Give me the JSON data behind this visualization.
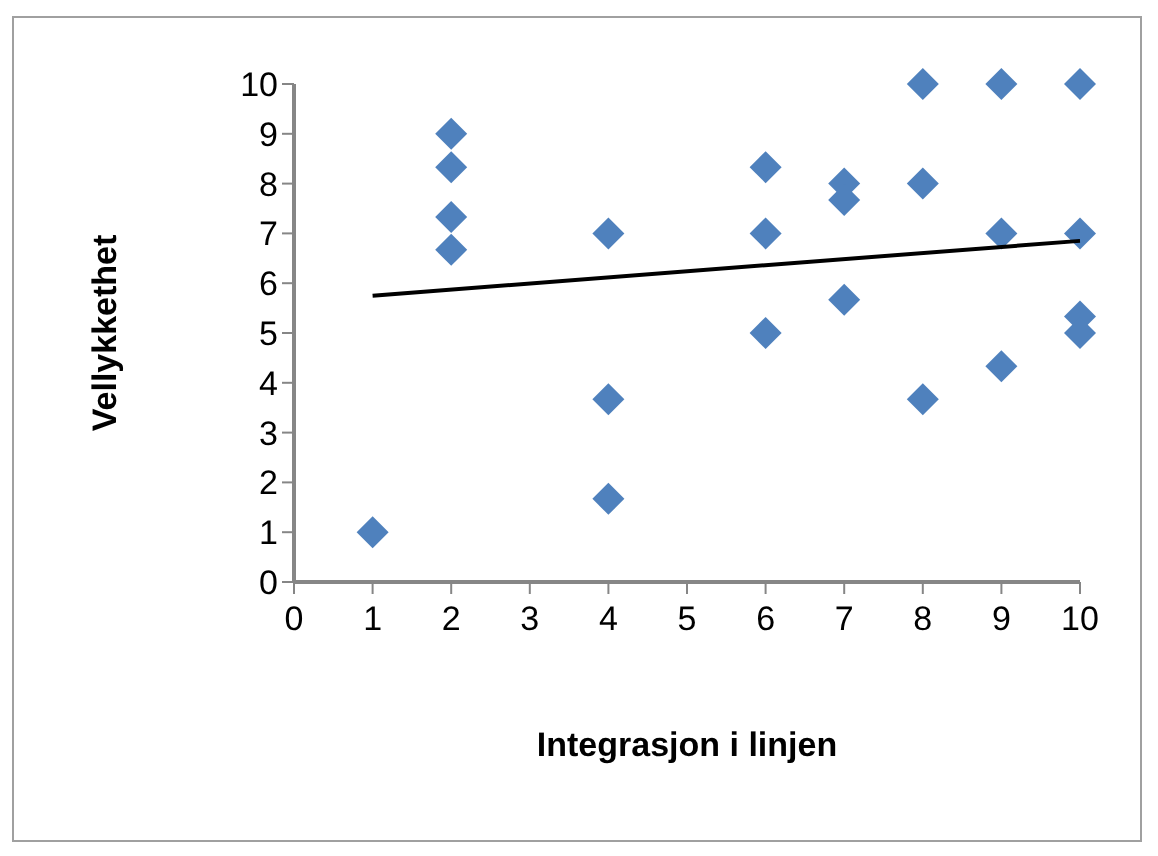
{
  "chart_data": {
    "type": "scatter",
    "xlabel": "Integrasjon i linjen",
    "ylabel": "Vellykkethet",
    "xlim": [
      0,
      10
    ],
    "xticks": [
      0,
      1,
      2,
      3,
      4,
      5,
      6,
      7,
      8,
      9,
      10
    ],
    "ylim": [
      0,
      10
    ],
    "yticks": [
      0,
      1,
      2,
      3,
      4,
      5,
      6,
      7,
      8,
      9,
      10
    ],
    "marker": "diamond",
    "series": [
      {
        "color": "#4f81bd",
        "x": [
          1,
          2,
          2,
          2,
          2,
          4,
          4,
          4,
          6,
          6,
          6,
          7,
          7,
          7,
          8,
          8,
          8,
          9,
          9,
          9,
          10,
          10,
          10,
          10
        ],
        "values": [
          1,
          9,
          8.33,
          7.33,
          6.67,
          7,
          3.67,
          1.67,
          8.33,
          7,
          5,
          8,
          7.67,
          5.67,
          10,
          8,
          3.67,
          10,
          7,
          4.33,
          10,
          7,
          5.33,
          5
        ]
      },
      {
        "type": "line",
        "color": "#000000",
        "marker": "none",
        "line_style": "solid",
        "x": [
          1,
          10
        ],
        "values": [
          5.75,
          6.85
        ]
      }
    ]
  }
}
